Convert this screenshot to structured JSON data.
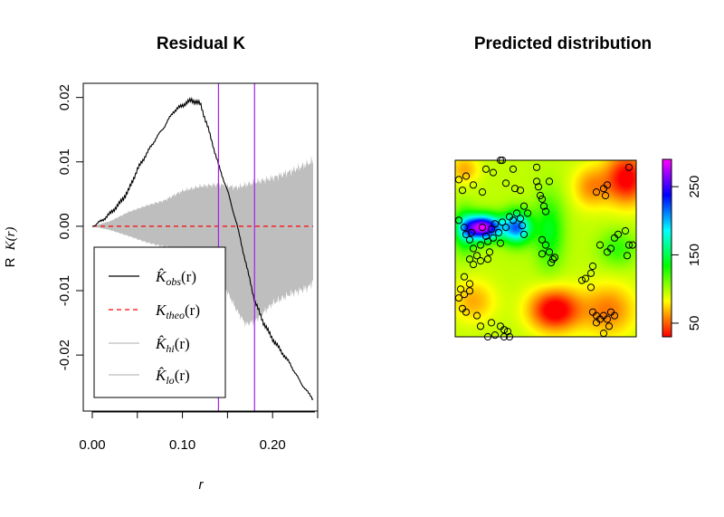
{
  "chart_data": [
    {
      "type": "line",
      "title": "Residual K",
      "xlabel": "r",
      "ylabel": "R K(r)",
      "ylabel_prefix": "R",
      "ylabel_func": "K(r)",
      "xlim": [
        -0.01,
        0.25
      ],
      "ylim": [
        -0.0287,
        0.0222
      ],
      "xticks": [
        0.0,
        0.1,
        0.2
      ],
      "xtick_labels": [
        "0.00",
        "0.10",
        "0.20"
      ],
      "yticks": [
        -0.02,
        -0.01,
        0.0,
        0.01,
        0.02
      ],
      "ytick_labels": [
        "-0.02",
        "-0.01",
        "0.00",
        "0.01",
        "0.02"
      ],
      "grid": false,
      "legend_placement": "bottom-left",
      "series": [
        {
          "name": "K̂obs(r)",
          "name_main": "K̂",
          "name_sub": "obs",
          "name_tail": "(r)",
          "color": "#000000",
          "style": "solid",
          "x": [
            0.0,
            0.01,
            0.02,
            0.03,
            0.04,
            0.05,
            0.06,
            0.07,
            0.08,
            0.09,
            0.1,
            0.11,
            0.12,
            0.13,
            0.14,
            0.15,
            0.16,
            0.17,
            0.18,
            0.19,
            0.2,
            0.21,
            0.22,
            0.23,
            0.24,
            0.245
          ],
          "y": [
            0.0,
            0.0008,
            0.002,
            0.0035,
            0.0055,
            0.0088,
            0.0112,
            0.0135,
            0.0155,
            0.0178,
            0.0188,
            0.0196,
            0.019,
            0.0145,
            0.0095,
            0.0055,
            0.0005,
            -0.0055,
            -0.0115,
            -0.015,
            -0.0175,
            -0.0195,
            -0.0215,
            -0.024,
            -0.026,
            -0.0268
          ]
        },
        {
          "name": "Ktheo(r)",
          "name_main": "K",
          "name_sub": "theo",
          "name_tail": "(r)",
          "color": "#ff0000",
          "style": "dashed",
          "x": [
            0.0,
            0.245
          ],
          "y": [
            0.0,
            0.0
          ]
        },
        {
          "name": "K̂hi(r)",
          "name_main": "K̂",
          "name_sub": "hi",
          "name_tail": "(r)",
          "color": "#bebebe",
          "style": "band-upper",
          "x": [
            0.0,
            0.02,
            0.04,
            0.06,
            0.08,
            0.1,
            0.12,
            0.14,
            0.16,
            0.18,
            0.2,
            0.22,
            0.24,
            0.245
          ],
          "y": [
            0.0,
            0.0008,
            0.0022,
            0.0032,
            0.004,
            0.0055,
            0.0062,
            0.0065,
            0.006,
            0.0068,
            0.0075,
            0.0085,
            0.0098,
            0.0102
          ]
        },
        {
          "name": "K̂lo(r)",
          "name_main": "K̂",
          "name_sub": "lo",
          "name_tail": "(r)",
          "color": "#bebebe",
          "style": "band-lower",
          "x": [
            0.0,
            0.02,
            0.04,
            0.06,
            0.08,
            0.1,
            0.12,
            0.14,
            0.16,
            0.17,
            0.18,
            0.2,
            0.22,
            0.24,
            0.245
          ],
          "y": [
            0.0,
            -0.0006,
            -0.0015,
            -0.0025,
            -0.0032,
            -0.0035,
            -0.0042,
            -0.0075,
            -0.013,
            -0.0152,
            -0.0148,
            -0.012,
            -0.0105,
            -0.0095,
            -0.0085
          ]
        }
      ],
      "vlines": {
        "color": "#a020f0",
        "x": [
          0.14,
          0.18
        ]
      }
    },
    {
      "type": "heatmap",
      "title": "Predicted distribution",
      "colorbar_ticks": [
        50,
        150,
        250
      ],
      "colorbar_tick_labels": [
        "50",
        "150",
        "250"
      ],
      "colorbar_range": [
        30,
        290
      ],
      "colorscale": "rainbow (red → yellow → green → cyan → blue → magenta)",
      "intensity_peaks": [
        {
          "x": 0.15,
          "y": 0.62,
          "value": 280
        },
        {
          "x": 0.32,
          "y": 0.6,
          "value": 220
        },
        {
          "x": 0.6,
          "y": 0.22,
          "value": 30
        },
        {
          "x": 0.95,
          "y": 0.95,
          "value": 30
        }
      ],
      "points": [
        [
          0.02,
          0.89
        ],
        [
          0.04,
          0.83
        ],
        [
          0.06,
          0.91
        ],
        [
          0.1,
          0.86
        ],
        [
          0.15,
          0.82
        ],
        [
          0.17,
          0.95
        ],
        [
          0.21,
          0.93
        ],
        [
          0.25,
          1.0
        ],
        [
          0.26,
          1.0
        ],
        [
          0.28,
          0.87
        ],
        [
          0.32,
          0.95
        ],
        [
          0.33,
          0.84
        ],
        [
          0.36,
          0.83
        ],
        [
          0.38,
          0.74
        ],
        [
          0.4,
          0.7
        ],
        [
          0.45,
          0.96
        ],
        [
          0.45,
          0.88
        ],
        [
          0.46,
          0.85
        ],
        [
          0.47,
          0.8
        ],
        [
          0.48,
          0.78
        ],
        [
          0.49,
          0.74
        ],
        [
          0.5,
          0.71
        ],
        [
          0.52,
          0.88
        ],
        [
          0.02,
          0.66
        ],
        [
          0.05,
          0.62
        ],
        [
          0.06,
          0.58
        ],
        [
          0.08,
          0.55
        ],
        [
          0.09,
          0.59
        ],
        [
          0.1,
          0.5
        ],
        [
          0.12,
          0.46
        ],
        [
          0.14,
          0.52
        ],
        [
          0.15,
          0.62
        ],
        [
          0.17,
          0.57
        ],
        [
          0.18,
          0.54
        ],
        [
          0.19,
          0.48
        ],
        [
          0.2,
          0.61
        ],
        [
          0.21,
          0.56
        ],
        [
          0.22,
          0.64
        ],
        [
          0.24,
          0.59
        ],
        [
          0.25,
          0.53
        ],
        [
          0.26,
          0.65
        ],
        [
          0.28,
          0.62
        ],
        [
          0.3,
          0.68
        ],
        [
          0.32,
          0.66
        ],
        [
          0.34,
          0.7
        ],
        [
          0.36,
          0.67
        ],
        [
          0.37,
          0.63
        ],
        [
          0.38,
          0.58
        ],
        [
          0.08,
          0.44
        ],
        [
          0.1,
          0.41
        ],
        [
          0.14,
          0.43
        ],
        [
          0.18,
          0.44
        ],
        [
          0.48,
          0.55
        ],
        [
          0.5,
          0.52
        ],
        [
          0.52,
          0.48
        ],
        [
          0.54,
          0.44
        ],
        [
          0.55,
          0.45
        ],
        [
          0.53,
          0.42
        ],
        [
          0.48,
          0.47
        ],
        [
          0.05,
          0.34
        ],
        [
          0.08,
          0.3
        ],
        [
          0.03,
          0.27
        ],
        [
          0.02,
          0.22
        ],
        [
          0.05,
          0.24
        ],
        [
          0.08,
          0.26
        ],
        [
          0.04,
          0.16
        ],
        [
          0.06,
          0.14
        ],
        [
          0.12,
          0.12
        ],
        [
          0.7,
          0.32
        ],
        [
          0.72,
          0.33
        ],
        [
          0.75,
          0.36
        ],
        [
          0.76,
          0.4
        ],
        [
          0.75,
          0.28
        ],
        [
          0.76,
          0.14
        ],
        [
          0.78,
          0.12
        ],
        [
          0.8,
          0.1
        ],
        [
          0.82,
          0.12
        ],
        [
          0.84,
          0.1
        ],
        [
          0.86,
          0.14
        ],
        [
          0.88,
          0.12
        ],
        [
          0.78,
          0.08
        ],
        [
          0.85,
          0.06
        ],
        [
          0.82,
          0.02
        ],
        [
          0.8,
          0.52
        ],
        [
          0.84,
          0.48
        ],
        [
          0.86,
          0.5
        ],
        [
          0.88,
          0.56
        ],
        [
          0.9,
          0.58
        ],
        [
          0.94,
          0.6
        ],
        [
          0.96,
          0.52
        ],
        [
          0.98,
          0.52
        ],
        [
          0.95,
          0.46
        ],
        [
          0.78,
          0.82
        ],
        [
          0.82,
          0.84
        ],
        [
          0.84,
          0.86
        ],
        [
          0.83,
          0.8
        ],
        [
          0.96,
          0.96
        ],
        [
          0.2,
          0.08
        ],
        [
          0.25,
          0.06
        ],
        [
          0.27,
          0.04
        ],
        [
          0.29,
          0.03
        ],
        [
          0.22,
          0.01
        ],
        [
          0.27,
          0.0
        ],
        [
          0.3,
          0.0
        ],
        [
          0.14,
          0.06
        ],
        [
          0.18,
          0.0
        ]
      ]
    }
  ]
}
